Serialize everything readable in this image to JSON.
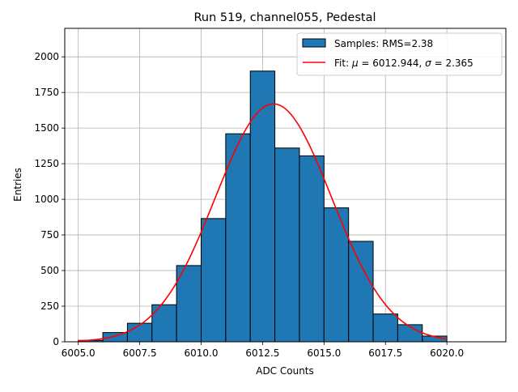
{
  "chart_data": {
    "type": "bar",
    "title": "Run 519, channel055, Pedestal",
    "xlabel": "ADC Counts",
    "ylabel": "Entries",
    "xlim": [
      6004.45,
      6022.4
    ],
    "ylim": [
      0,
      2200
    ],
    "x_ticks": [
      6005.0,
      6007.5,
      6010.0,
      6012.5,
      6015.0,
      6017.5,
      6020.0
    ],
    "x_tick_labels": [
      "6005.0",
      "6007.5",
      "6010.0",
      "6012.5",
      "6015.0",
      "6017.5",
      "6020.0"
    ],
    "y_ticks": [
      0,
      250,
      500,
      750,
      1000,
      1250,
      1500,
      1750,
      2000
    ],
    "y_tick_labels": [
      "0",
      "250",
      "500",
      "750",
      "1000",
      "1250",
      "1500",
      "1750",
      "2000"
    ],
    "grid": true,
    "legend_position": "top-right",
    "bin_edges": [
      6005,
      6006,
      6007,
      6008,
      6009,
      6010,
      6011,
      6012,
      6013,
      6014,
      6015,
      6016,
      6017,
      6018,
      6019,
      6020
    ],
    "series": [
      {
        "name": "Samples: RMS=2.38",
        "type": "histogram",
        "color": "#1f77b4",
        "edge_color": "#000000",
        "values": [
          10,
          65,
          130,
          260,
          535,
          865,
          1460,
          1900,
          1360,
          1305,
          940,
          705,
          195,
          120,
          40
        ]
      },
      {
        "name": "Fit: μ = 6012.944, σ = 2.365",
        "name_parts": [
          "Fit: ",
          "μ",
          " = 6012.944, ",
          "σ",
          " = 2.365"
        ],
        "type": "line",
        "color": "#ff0000",
        "mu": 6012.944,
        "sigma": 2.365,
        "amplitude": 1670,
        "x_range": [
          6005,
          6020
        ]
      }
    ]
  }
}
